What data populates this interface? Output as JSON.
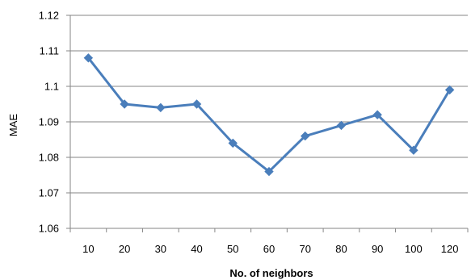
{
  "chart_data": {
    "type": "line",
    "title": "",
    "xlabel": "No. of neighbors",
    "ylabel": "MAE",
    "categories": [
      "10",
      "20",
      "30",
      "40",
      "50",
      "60",
      "70",
      "80",
      "90",
      "100",
      "120"
    ],
    "series": [
      {
        "values": [
          1.108,
          1.095,
          1.094,
          1.095,
          1.084,
          1.076,
          1.086,
          1.089,
          1.092,
          1.082,
          1.099
        ],
        "color": "#4a7ebb"
      }
    ],
    "ylim": [
      1.06,
      1.12
    ],
    "yticks": [
      "1.06",
      "1.07",
      "1.08",
      "1.09",
      "1.1",
      "1.11",
      "1.12"
    ],
    "grid": true,
    "gridColor": "#868686",
    "legend": "none"
  }
}
